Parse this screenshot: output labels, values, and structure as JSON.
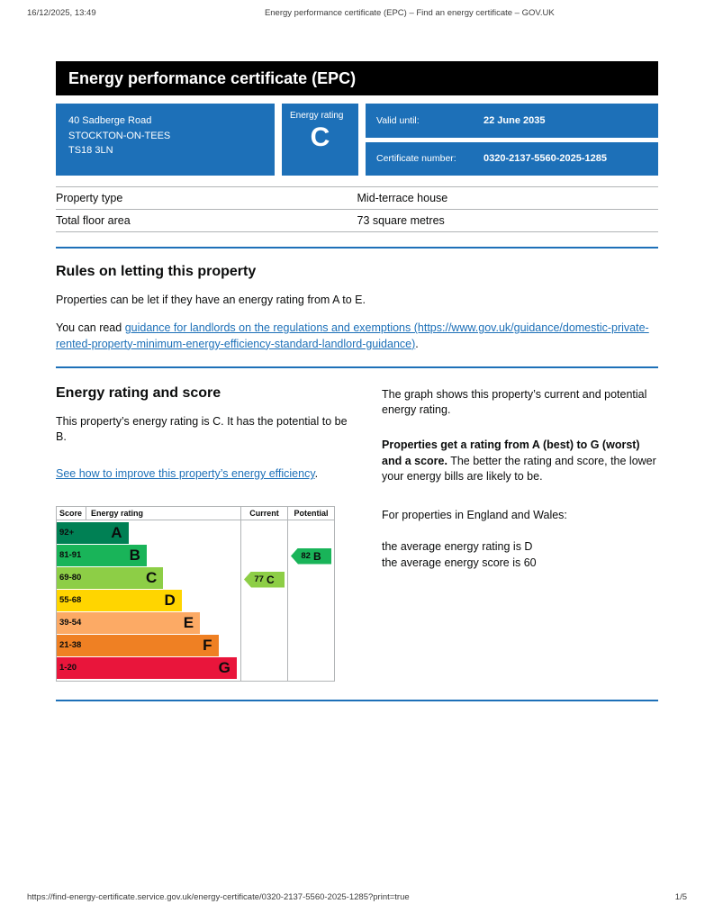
{
  "print_header": {
    "datetime": "16/12/2025, 13:49",
    "title": "Energy performance certificate (EPC) – Find an energy certificate – GOV.UK"
  },
  "banner": {
    "title": "Energy performance certificate (EPC)"
  },
  "summary": {
    "address_line1": "40 Sadberge Road",
    "address_line2": "STOCKTON-ON-TEES",
    "address_line3": "TS18 3LN",
    "energy_rating_label": "Energy rating",
    "energy_rating_value": "C",
    "valid_until_label": "Valid until:",
    "valid_until_value": "22 June 2035",
    "certificate_number_label": "Certificate number:",
    "certificate_number_value": "0320-2137-5560-2025-1285"
  },
  "property_details": {
    "rows": [
      {
        "label": "Property type",
        "value": "Mid-terrace house"
      },
      {
        "label": "Total floor area",
        "value": "73 square metres"
      }
    ]
  },
  "rules": {
    "heading": "Rules on letting this property",
    "paragraph1": "Properties can be let if they have an energy rating from A to E.",
    "paragraph2_prefix": "You can read ",
    "paragraph2_link": "guidance for landlords on the regulations and exemptions (https://www.gov.uk/guidance/domestic-private-rented-property-minimum-energy-efficiency-standard-landlord-guidance)",
    "paragraph2_suffix": "."
  },
  "rating": {
    "heading": "Energy rating and score",
    "intro": "This property’s energy rating is C. It has the potential to be B.",
    "improve_link": "See how to improve this property’s energy efficiency",
    "improve_suffix": ".",
    "graph_intro": "The graph shows this property’s current and potential energy rating.",
    "explain_bold": "Properties get a rating from A (best) to G (worst) and a score.",
    "explain_rest": " The better the rating and score, the lower your energy bills are likely to be.",
    "region_intro": "For properties in England and Wales:",
    "average_rating_line": "the average energy rating is D",
    "average_score_line": "the average energy score is 60"
  },
  "chart_data": {
    "type": "bar",
    "title": "Energy rating and score",
    "legend_position": "none",
    "headers": {
      "score": "Score",
      "rating": "Energy rating",
      "current": "Current",
      "potential": "Potential"
    },
    "bands": [
      {
        "score": "92+",
        "letter": "A",
        "color": "#008054",
        "width_pct": 39
      },
      {
        "score": "81-91",
        "letter": "B",
        "color": "#19b459",
        "width_pct": 49
      },
      {
        "score": "69-80",
        "letter": "C",
        "color": "#8dce46",
        "width_pct": 58
      },
      {
        "score": "55-68",
        "letter": "D",
        "color": "#ffd500",
        "width_pct": 68
      },
      {
        "score": "39-54",
        "letter": "E",
        "color": "#fcaa65",
        "width_pct": 78
      },
      {
        "score": "21-38",
        "letter": "F",
        "color": "#ef8023",
        "width_pct": 88
      },
      {
        "score": "1-20",
        "letter": "G",
        "color": "#e9153b",
        "width_pct": 98
      }
    ],
    "current": {
      "score": "77",
      "letter": "C",
      "color": "#8dce46",
      "band_index": 2
    },
    "potential": {
      "score": "82",
      "letter": "B",
      "color": "#19b459",
      "band_index": 1
    }
  },
  "footer": {
    "url": "https://find-energy-certificate.service.gov.uk/energy-certificate/0320-2137-5560-2025-1285?print=true",
    "page_indicator": "1/5"
  }
}
